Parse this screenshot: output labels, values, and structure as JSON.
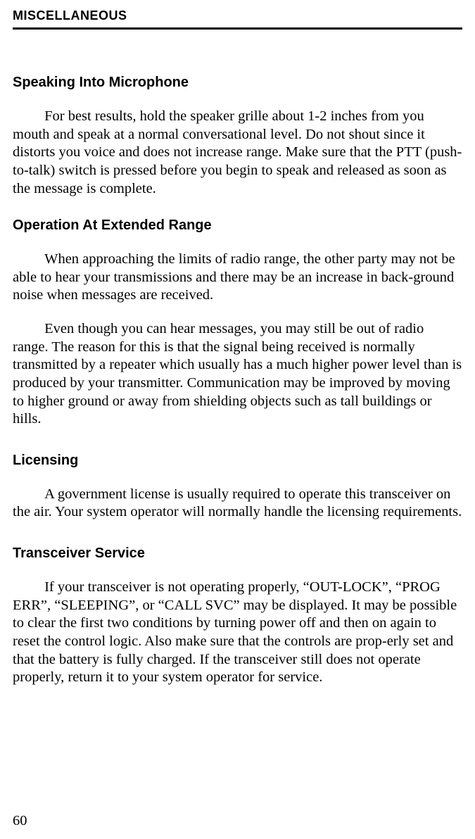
{
  "header": {
    "running_head": "MISCELLANEOUS"
  },
  "sections": {
    "speaking": {
      "title": "Speaking Into Microphone",
      "p1": "For best results, hold the speaker grille about 1-2 inches from you mouth and speak at a normal conversational level. Do not shout since it distorts you voice and does not increase range. Make sure that the PTT (push-to-talk) switch is pressed before you begin to speak and released as soon as the message is complete."
    },
    "extended": {
      "title": "Operation At Extended Range",
      "p1": "When approaching the limits of radio range, the other party may not be able to hear your transmissions and there may be an increase in back-ground noise when messages are received.",
      "p2": "Even though you can hear messages, you may still be out of radio range. The reason for this is that the signal being received is normally transmitted by a repeater which usually has a much higher power level than is produced by your transmitter. Communication may be improved by moving to higher ground or away from shielding objects such as tall buildings or hills."
    },
    "licensing": {
      "title": "Licensing",
      "p1": "A government license is usually required to operate this transceiver on the air. Your system operator will normally handle the licensing requirements."
    },
    "service": {
      "title": "Transceiver Service",
      "p1": "If your transceiver is not operating properly, “OUT-LOCK”, “PROG ERR”, “SLEEPING”, or “CALL SVC” may be displayed. It may be possible to clear the first two conditions by turning power off and then on again to reset the control logic. Also make sure that the controls are prop-erly set and that the battery is fully charged. If the transceiver still does not operate properly, return it to your system operator for service."
    }
  },
  "page_number": "60"
}
